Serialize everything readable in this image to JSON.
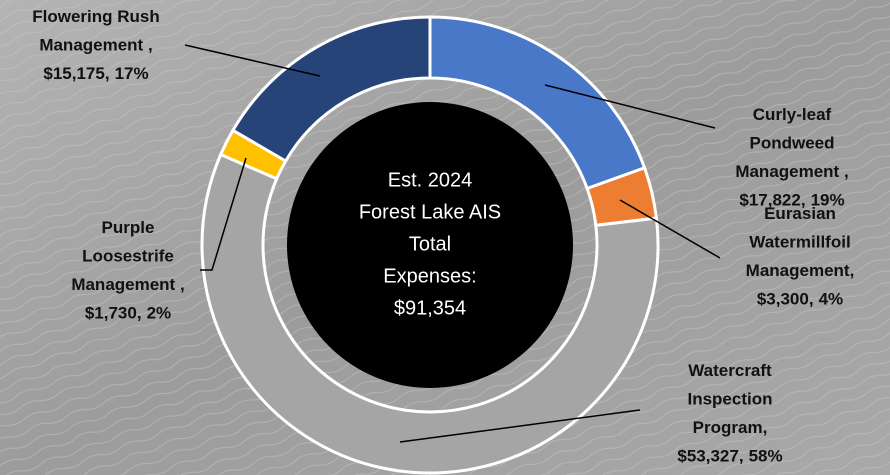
{
  "chart_data": {
    "type": "donut",
    "categories": [
      "Curly-leaf Pondweed Management ,",
      "Eurasian Watermillfoil Management,",
      "Watercraft Inspection Program,",
      "Purple Loosestrife Management ,",
      "Flowering Rush Management ,"
    ],
    "values": [
      17822,
      3300,
      53327,
      1730,
      15175
    ],
    "value_labels": [
      "$17,822,",
      "$3,300,",
      "$53,327,",
      "$1,730,",
      "$15,175,"
    ],
    "percents": [
      19,
      4,
      58,
      2,
      17
    ],
    "percent_labels": [
      "19%",
      "4%",
      "58%",
      "2%",
      "17%"
    ],
    "colors": [
      "#4a78c8",
      "#ed7d31",
      "#a5a5a5",
      "#ffc000",
      "#264478"
    ],
    "center_text": [
      "Est. 2024",
      "Forest Lake AIS",
      "Total",
      "Expenses:",
      "$91,354"
    ]
  }
}
